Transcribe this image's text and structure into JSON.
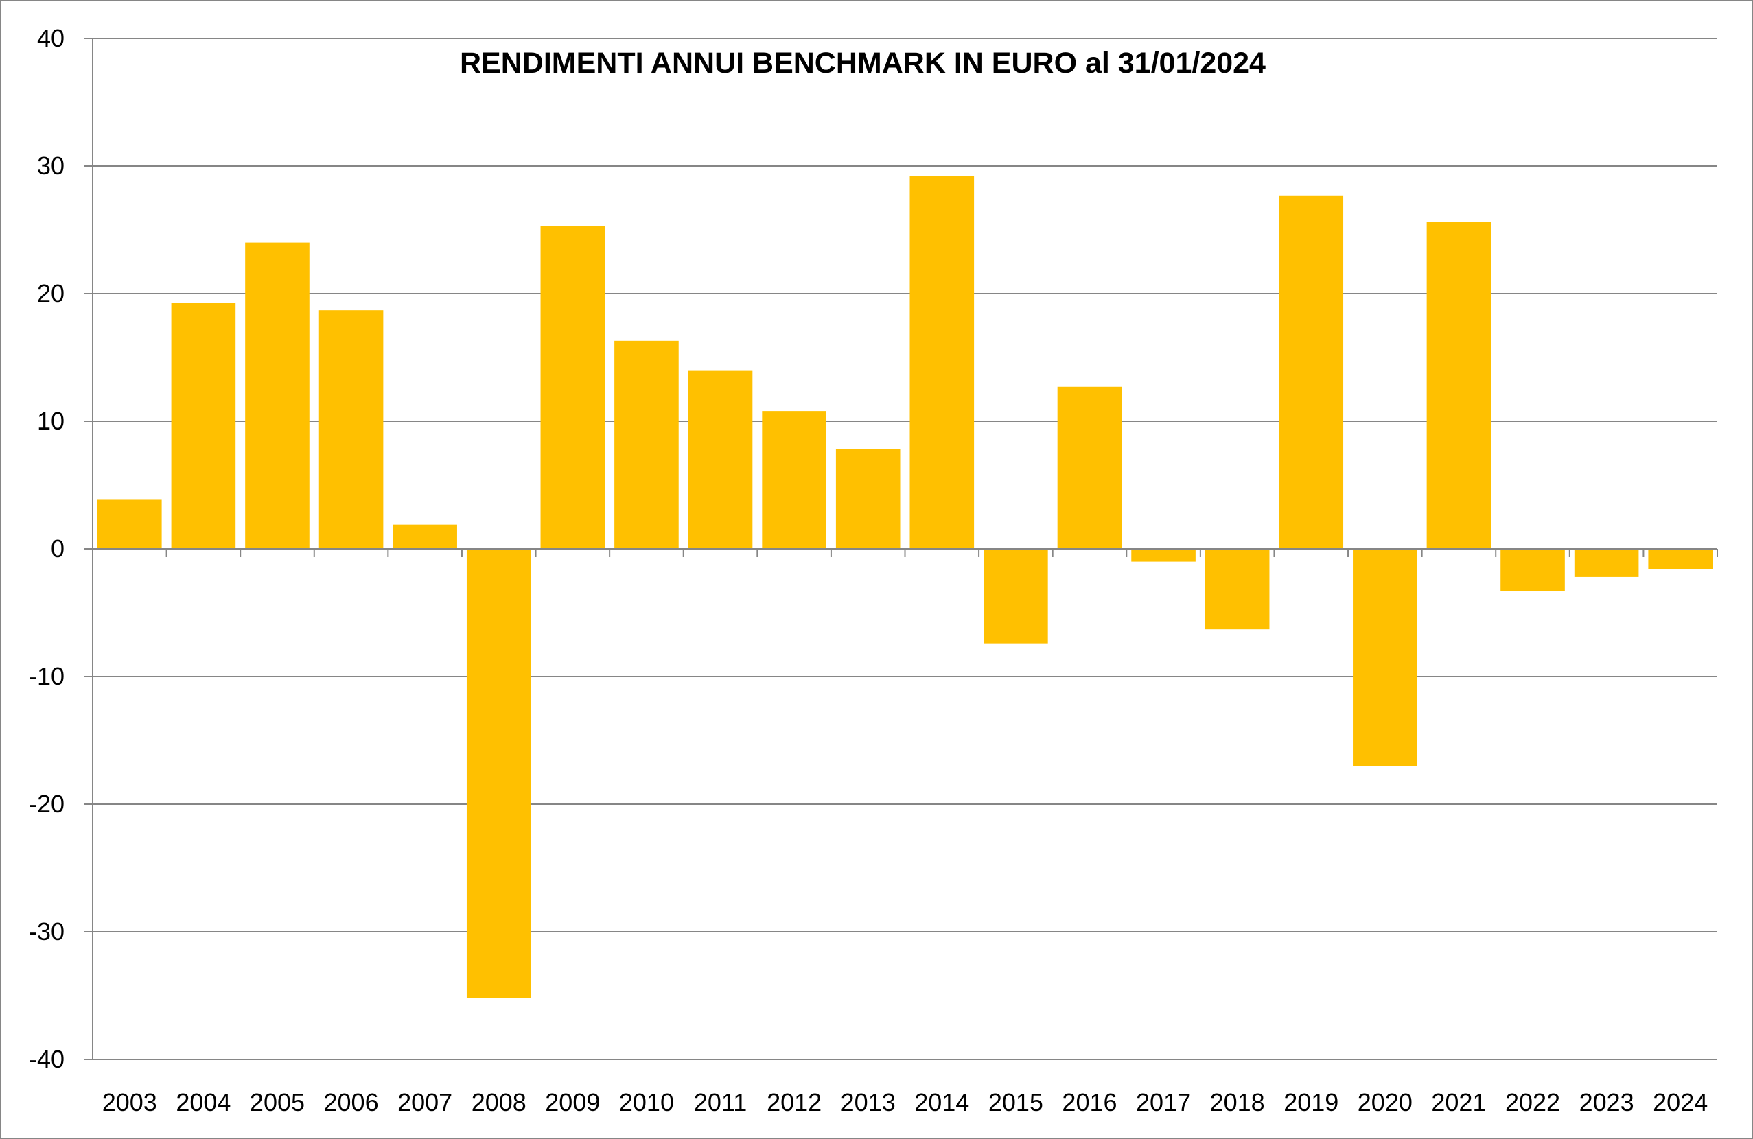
{
  "chart_data": {
    "type": "bar",
    "title": "RENDIMENTI ANNUI BENCHMARK IN EURO al 31/01/2024",
    "xlabel": "",
    "ylabel": "",
    "ylim": [
      -40,
      40
    ],
    "yticks": [
      40,
      30,
      20,
      10,
      0,
      -10,
      -20,
      -30,
      -40
    ],
    "grid": true,
    "legend": "none",
    "bar_color": "#FFC000",
    "categories": [
      "2003",
      "2004",
      "2005",
      "2006",
      "2007",
      "2008",
      "2009",
      "2010",
      "2011",
      "2012",
      "2013",
      "2014",
      "2015",
      "2016",
      "2017",
      "2018",
      "2019",
      "2020",
      "2021",
      "2022",
      "2023",
      "2024"
    ],
    "values": [
      3.9,
      19.3,
      24.0,
      18.7,
      1.9,
      -35.2,
      25.3,
      16.3,
      14.0,
      10.8,
      7.8,
      29.2,
      -7.4,
      12.7,
      -1.0,
      -6.3,
      27.7,
      -17.0,
      25.6,
      -3.3,
      -2.2,
      -1.6
    ]
  }
}
